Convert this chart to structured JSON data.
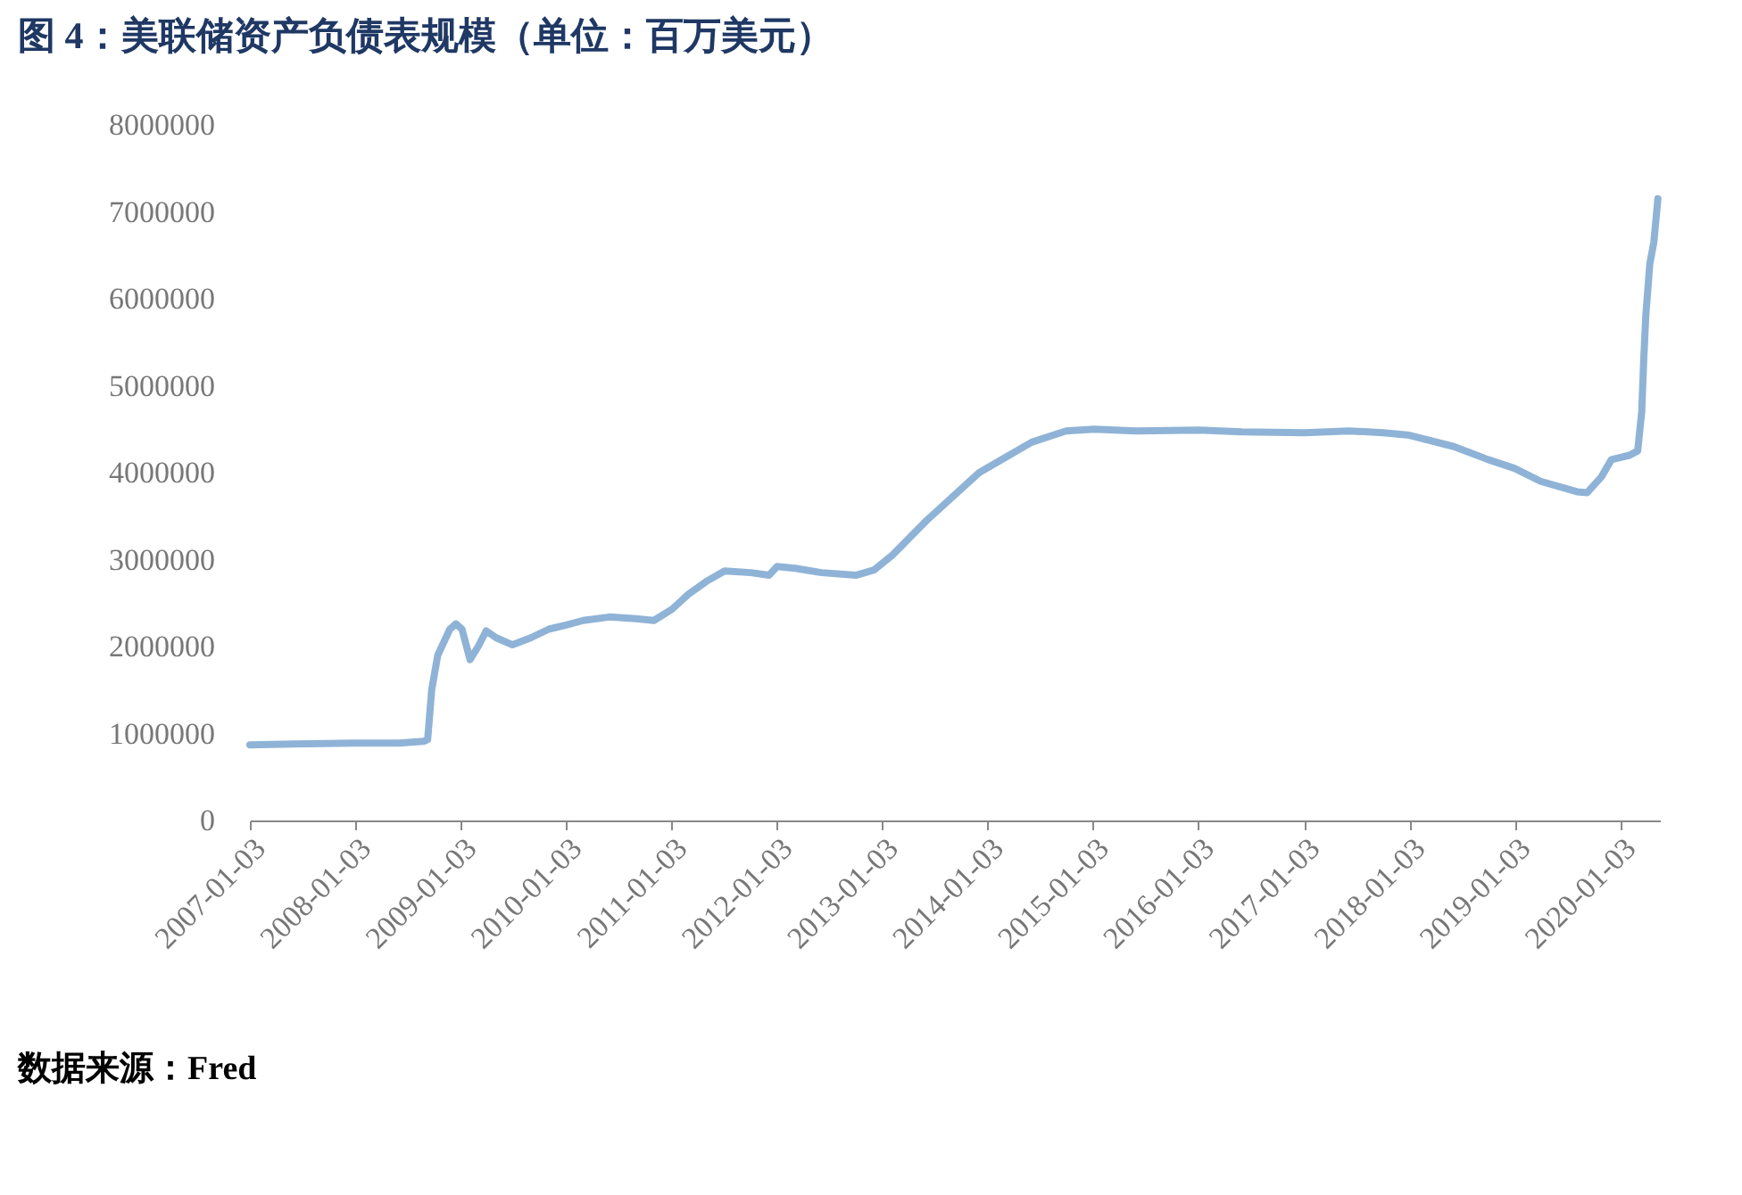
{
  "chart_data": {
    "type": "line",
    "title": "图 4：美联储资产负债表规模（单位：百万美元）",
    "annotations": [
      "数据来源：Fred"
    ],
    "x": [
      "2007-01-03",
      "2007-06-06",
      "2008-01-02",
      "2008-06-04",
      "2008-08-27",
      "2008-09-10",
      "2008-09-24",
      "2008-10-15",
      "2008-11-26",
      "2008-12-17",
      "2009-01-07",
      "2009-02-04",
      "2009-03-04",
      "2009-04-01",
      "2009-05-06",
      "2009-07-01",
      "2009-09-02",
      "2009-11-04",
      "2010-01-06",
      "2010-03-03",
      "2010-06-02",
      "2010-09-01",
      "2010-11-03",
      "2011-01-05",
      "2011-03-02",
      "2011-05-04",
      "2011-07-06",
      "2011-10-05",
      "2011-12-07",
      "2012-01-04",
      "2012-03-07",
      "2012-06-06",
      "2012-10-03",
      "2012-12-05",
      "2013-02-06",
      "2013-06-05",
      "2013-12-04",
      "2014-06-04",
      "2014-10-01",
      "2015-01-07",
      "2015-06-03",
      "2016-01-06",
      "2016-06-01",
      "2017-01-04",
      "2017-06-07",
      "2017-10-04",
      "2018-01-03",
      "2018-06-06",
      "2018-10-03",
      "2019-01-02",
      "2019-04-03",
      "2019-08-07",
      "2019-09-11",
      "2019-10-30",
      "2019-12-04",
      "2020-02-05",
      "2020-03-04",
      "2020-03-18",
      "2020-03-25",
      "2020-04-01",
      "2020-04-15",
      "2020-04-29",
      "2020-05-13"
    ],
    "series": [
      {
        "color": "#8fb3d6",
        "values": [
          870000,
          880000,
          890000,
          890000,
          910000,
          930000,
          1500000,
          1900000,
          2200000,
          2260000,
          2200000,
          1850000,
          2000000,
          2180000,
          2100000,
          2020000,
          2100000,
          2200000,
          2250000,
          2300000,
          2340000,
          2320000,
          2300000,
          2430000,
          2600000,
          2750000,
          2870000,
          2850000,
          2820000,
          2920000,
          2900000,
          2850000,
          2820000,
          2880000,
          3050000,
          3450000,
          4000000,
          4350000,
          4480000,
          4500000,
          4480000,
          4490000,
          4470000,
          4460000,
          4480000,
          4460000,
          4430000,
          4300000,
          4150000,
          4050000,
          3900000,
          3780000,
          3770000,
          3950000,
          4150000,
          4200000,
          4250000,
          4700000,
          5300000,
          5800000,
          6400000,
          6650000,
          7150000
        ]
      }
    ],
    "xlim": [
      "2007-01-03",
      "2020-05-20"
    ],
    "xticks": [
      "2007-01-03",
      "2008-01-03",
      "2009-01-03",
      "2010-01-03",
      "2011-01-03",
      "2012-01-03",
      "2013-01-03",
      "2014-01-03",
      "2015-01-03",
      "2016-01-03",
      "2017-01-03",
      "2018-01-03",
      "2019-01-03",
      "2020-01-03"
    ],
    "ylim": [
      0,
      8000000
    ],
    "yticks": [
      0,
      1000000,
      2000000,
      3000000,
      4000000,
      5000000,
      6000000,
      7000000,
      8000000
    ],
    "grid": false,
    "marker": "none",
    "line_style": "solid"
  }
}
